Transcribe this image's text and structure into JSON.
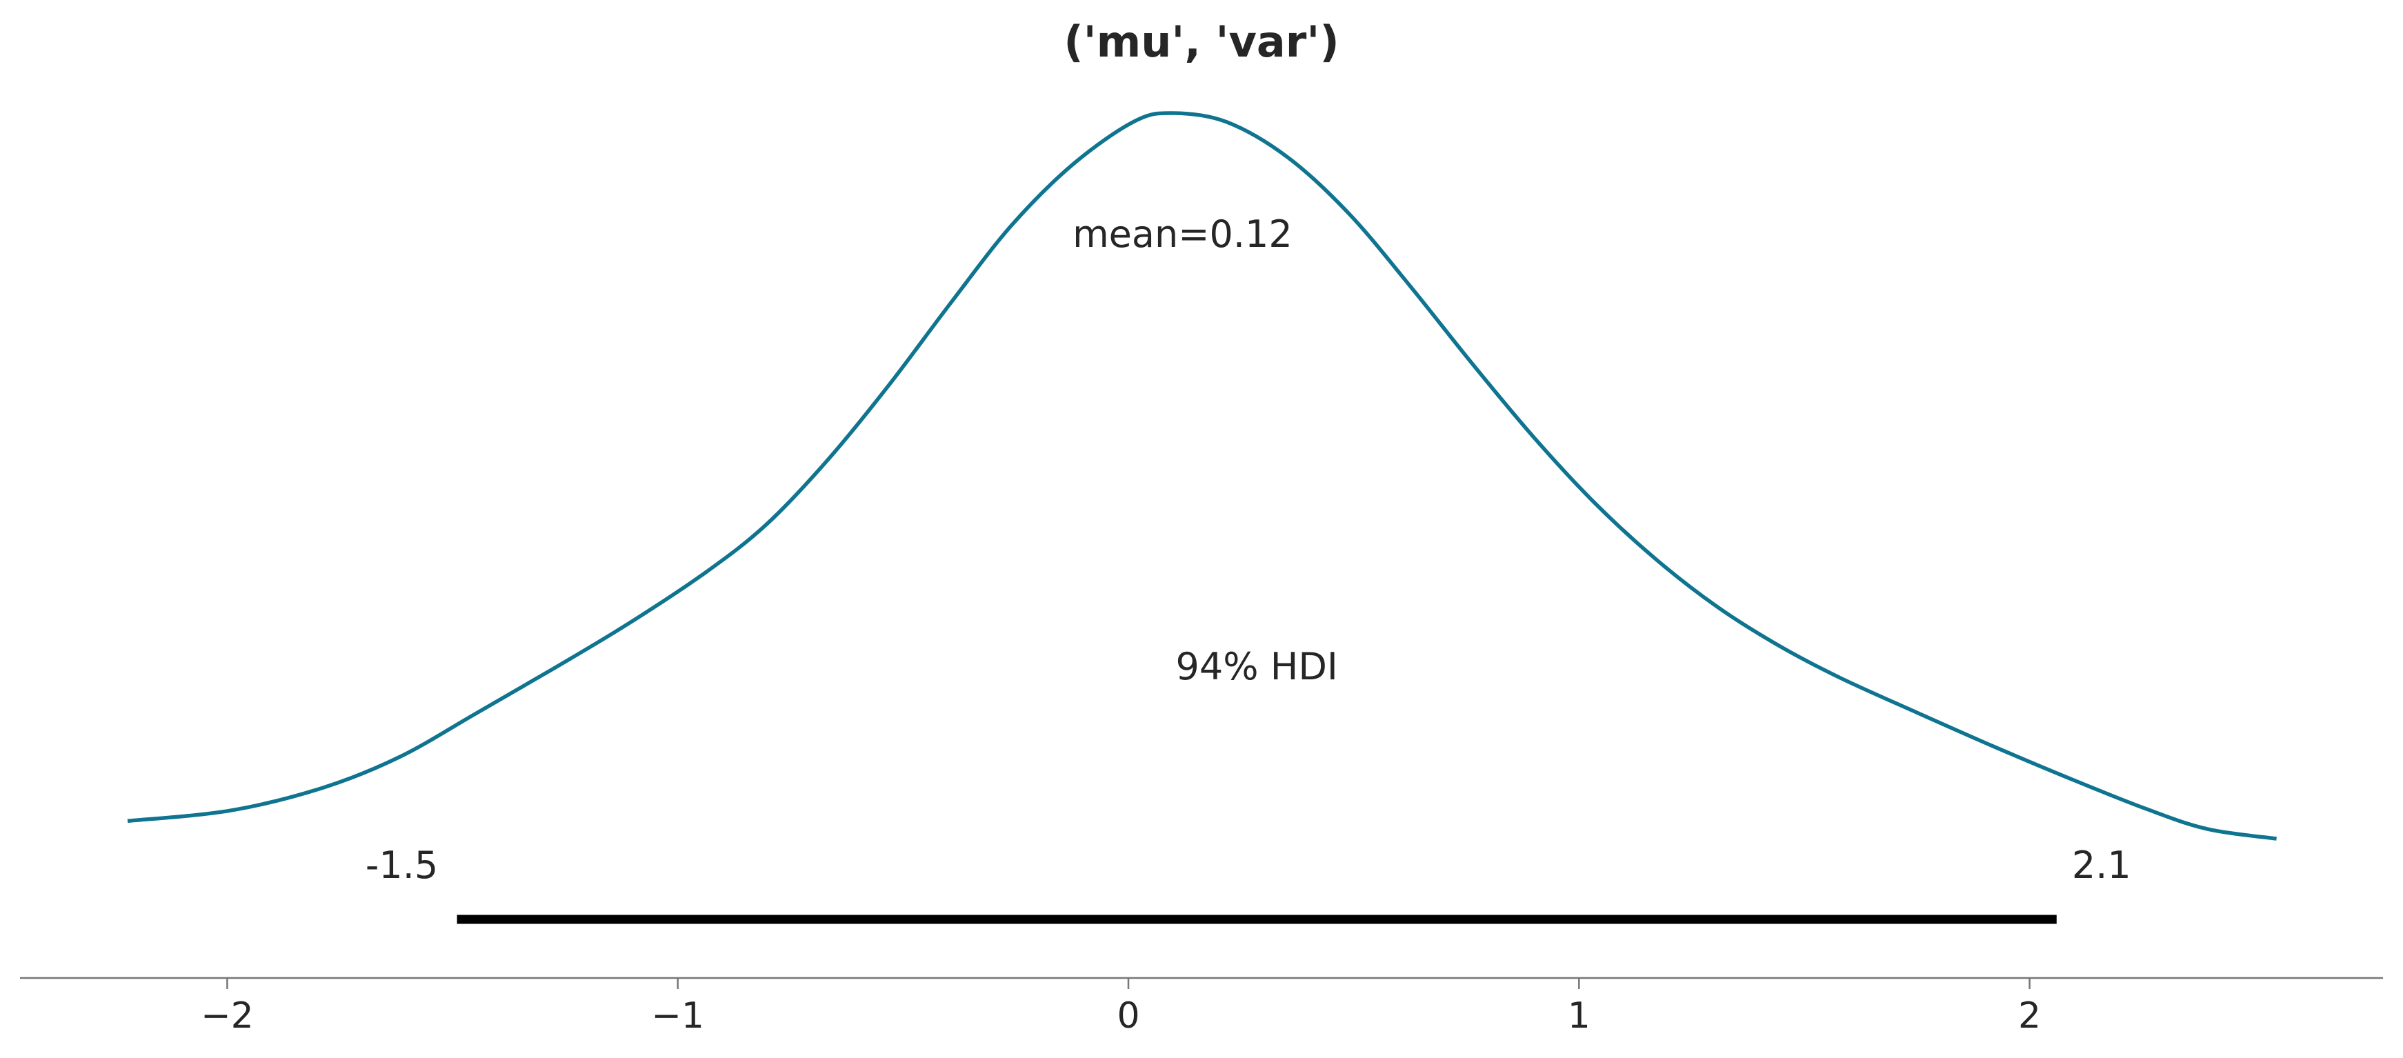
{
  "chart_data": {
    "type": "line",
    "title": "('mu', 'var')",
    "xlabel": "",
    "ylabel": "",
    "xlim": [
      -2.45,
      2.78
    ],
    "grid": false,
    "legend": "none",
    "line_color": "#0f7490",
    "x_ticks": [
      -2,
      -1,
      0,
      1,
      2
    ],
    "x_tick_labels": [
      "−2",
      "−1",
      "0",
      "1",
      "2"
    ],
    "density_relative": {
      "x": [
        -2.221,
        -1.993,
        -1.789,
        -1.619,
        -1.449,
        -1.279,
        -1.109,
        -0.939,
        -0.803,
        -0.667,
        -0.531,
        -0.395,
        -0.259,
        -0.122,
        0.014,
        0.099,
        0.218,
        0.354,
        0.49,
        0.626,
        0.762,
        0.898,
        1.034,
        1.17,
        1.306,
        1.442,
        1.578,
        1.748,
        1.918,
        2.088,
        2.259,
        2.395,
        2.548
      ],
      "y": [
        0.122,
        0.135,
        0.163,
        0.201,
        0.255,
        0.31,
        0.367,
        0.43,
        0.49,
        0.57,
        0.663,
        0.764,
        0.861,
        0.937,
        0.99,
        1.0,
        0.989,
        0.945,
        0.875,
        0.785,
        0.69,
        0.599,
        0.517,
        0.447,
        0.388,
        0.34,
        0.3,
        0.257,
        0.215,
        0.175,
        0.137,
        0.112,
        0.1
      ]
    },
    "mean": 0.12,
    "mean_label": "mean=0.12",
    "hdi": {
      "low": -1.49,
      "high": 2.06,
      "label": "94% HDI",
      "low_label": "-1.5",
      "high_label": "2.1",
      "color": "#000000"
    }
  }
}
